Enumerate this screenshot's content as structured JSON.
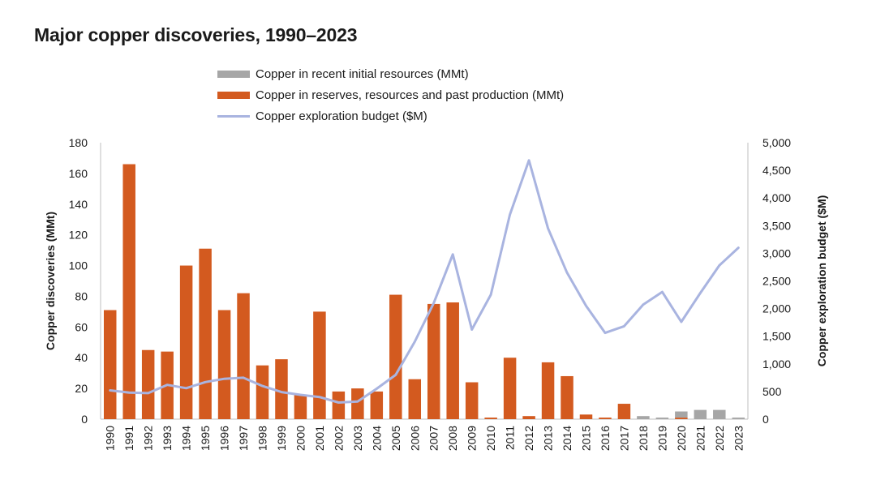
{
  "chart_data": {
    "type": "bar",
    "title": "Major copper discoveries, 1990–2023",
    "ylabel": "Copper discoveries (MMt)",
    "y2label": "Copper exploration budget ($M)",
    "ylim": [
      0,
      180
    ],
    "y2lim": [
      0,
      5000
    ],
    "yticks": [
      "0",
      "20",
      "40",
      "60",
      "80",
      "100",
      "120",
      "140",
      "160",
      "180"
    ],
    "y2ticks": [
      "0",
      "500",
      "1,000",
      "1,500",
      "2,000",
      "2,500",
      "3,000",
      "3,500",
      "4,000",
      "4,500",
      "5,000"
    ],
    "categories": [
      "1990",
      "1991",
      "1992",
      "1993",
      "1994",
      "1995",
      "1996",
      "1997",
      "1998",
      "1999",
      "2000",
      "2001",
      "2002",
      "2003",
      "2004",
      "2005",
      "2006",
      "2007",
      "2008",
      "2009",
      "2010",
      "2011",
      "2012",
      "2013",
      "2014",
      "2015",
      "2016",
      "2017",
      "2018",
      "2019",
      "2020",
      "2021",
      "2022",
      "2023"
    ],
    "series": [
      {
        "name": "Copper in recent initial resources (MMt)",
        "kind": "bar",
        "color": "#a6a6a6",
        "values": [
          0,
          0,
          0,
          0,
          0,
          0,
          0,
          0,
          0,
          0,
          0,
          0,
          0,
          0,
          0,
          0,
          0,
          0,
          0,
          0,
          0,
          0,
          0,
          0,
          0,
          0,
          0,
          0,
          2,
          1,
          4,
          6,
          6,
          1
        ]
      },
      {
        "name": "Copper in reserves, resources and past production (MMt)",
        "kind": "bar",
        "color": "#d35a1f",
        "values": [
          71,
          166,
          45,
          44,
          100,
          111,
          71,
          82,
          35,
          39,
          16,
          70,
          18,
          20,
          18,
          81,
          26,
          75,
          76,
          24,
          1,
          40,
          2,
          37,
          28,
          3,
          1,
          10,
          0,
          0,
          1,
          0,
          0,
          0
        ]
      },
      {
        "name": "Copper exploration budget ($M)",
        "kind": "line",
        "color": "#a9b4e0",
        "values": [
          520,
          480,
          470,
          620,
          560,
          670,
          730,
          750,
          600,
          490,
          440,
          400,
          300,
          320,
          550,
          800,
          1400,
          2100,
          2980,
          1620,
          2250,
          3700,
          4680,
          3450,
          2650,
          2050,
          1560,
          1680,
          2070,
          2300,
          1760,
          2280,
          2780,
          3100
        ]
      }
    ],
    "legend_position": "top"
  }
}
